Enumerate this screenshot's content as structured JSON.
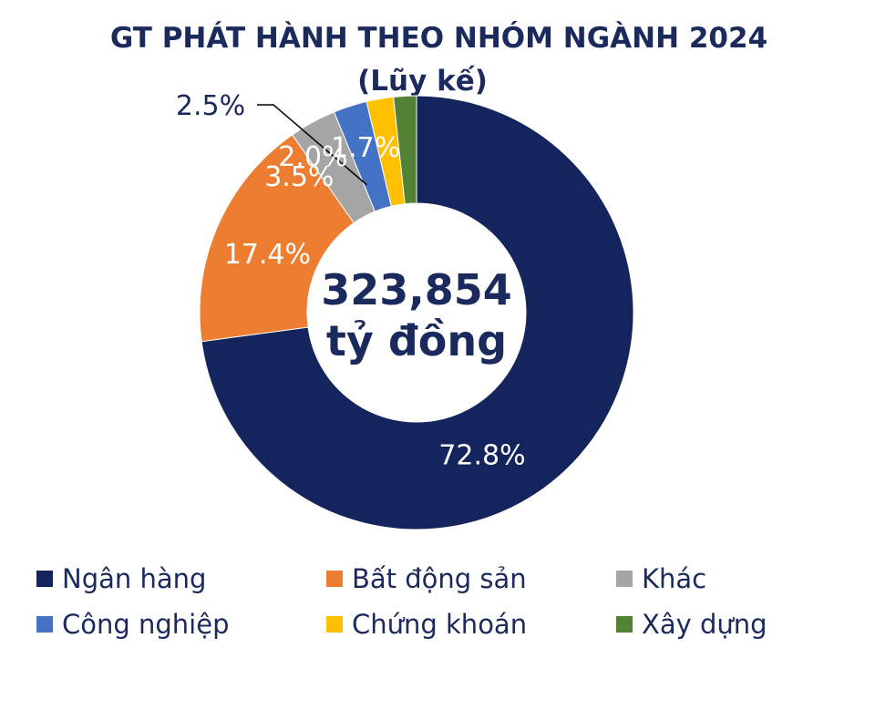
{
  "title": {
    "line1": "GT PHÁT HÀNH THEO NHÓM NGÀNH 2024",
    "line2": "(Lũy kế)"
  },
  "center": {
    "value": "323,854",
    "unit": "tỷ đồng"
  },
  "chart_data": {
    "type": "pie",
    "donut": true,
    "total": 323854,
    "total_unit": "tỷ đồng",
    "series": [
      {
        "name": "Ngân hàng",
        "value": 72.8,
        "label": "72.8%",
        "color": "#14245c"
      },
      {
        "name": "Bất động sản",
        "value": 17.4,
        "label": "17.4%",
        "color": "#ed7d31"
      },
      {
        "name": "Khác",
        "value": 3.5,
        "label": "3.5%",
        "color": "#a5a5a5"
      },
      {
        "name": "Công nghiệp",
        "value": 2.5,
        "label": "2.5%",
        "color": "#4472c4"
      },
      {
        "name": "Chứng khoán",
        "value": 2.0,
        "label": "2.0%",
        "color": "#ffc000"
      },
      {
        "name": "Xây dựng",
        "value": 1.7,
        "label": "1.7%",
        "color": "#548235"
      }
    ],
    "legend": "bottom"
  }
}
